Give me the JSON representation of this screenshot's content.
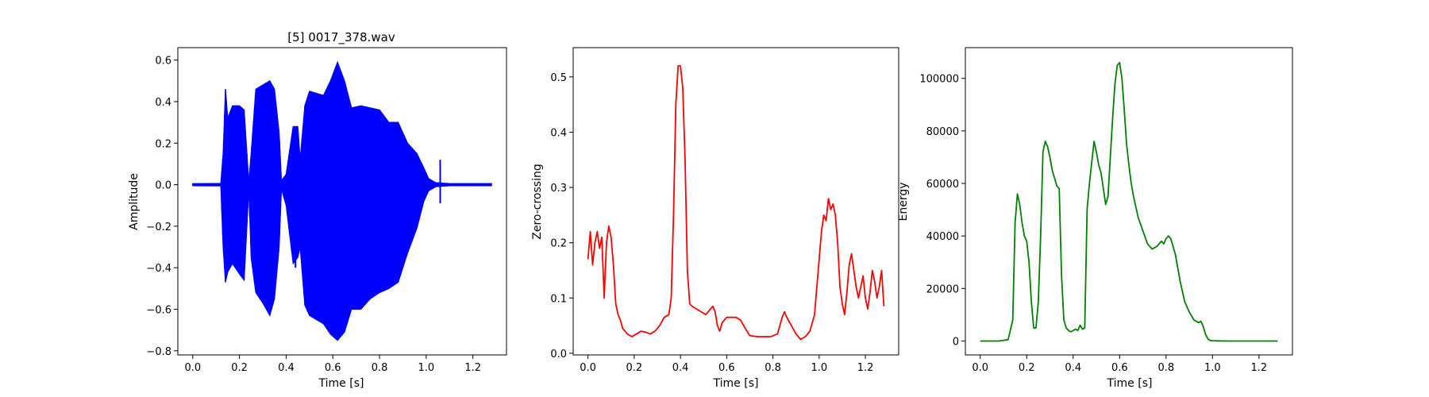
{
  "chart_data": [
    {
      "type": "line",
      "title": "[5] 0017_378.wav",
      "xlabel": "Time [s]",
      "ylabel": "Amplitude",
      "xlim": [
        -0.064,
        1.344
      ],
      "ylim": [
        -0.82,
        0.66
      ],
      "xticks": [
        "0.0",
        "0.2",
        "0.4",
        "0.6",
        "0.8",
        "1.0",
        "1.2"
      ],
      "yticks": [
        "−0.8",
        "−0.6",
        "−0.4",
        "−0.2",
        "0.0",
        "0.2",
        "0.4",
        "0.6"
      ],
      "color": "#0000ff",
      "grid": false,
      "series": [
        {
          "envelope": {
            "t": [
              0.0,
              0.12,
              0.13,
              0.14,
              0.15,
              0.17,
              0.2,
              0.22,
              0.24,
              0.25,
              0.27,
              0.3,
              0.33,
              0.35,
              0.37,
              0.38,
              0.4,
              0.43,
              0.45,
              0.46,
              0.48,
              0.5,
              0.53,
              0.56,
              0.59,
              0.62,
              0.65,
              0.68,
              0.72,
              0.76,
              0.8,
              0.84,
              0.88,
              0.92,
              0.96,
              0.99,
              1.01,
              1.04,
              1.1,
              1.28
            ],
            "upper": [
              0.005,
              0.006,
              0.15,
              0.46,
              0.32,
              0.38,
              0.38,
              0.36,
              0.01,
              0.15,
              0.46,
              0.48,
              0.5,
              0.46,
              0.25,
              0.02,
              0.05,
              0.28,
              0.28,
              0.12,
              0.38,
              0.45,
              0.44,
              0.43,
              0.5,
              0.59,
              0.5,
              0.37,
              0.38,
              0.37,
              0.36,
              0.3,
              0.3,
              0.2,
              0.15,
              0.08,
              0.03,
              0.01,
              0.005,
              0.005
            ],
            "lower": [
              -0.005,
              -0.006,
              -0.3,
              -0.47,
              -0.42,
              -0.38,
              -0.43,
              -0.46,
              -0.02,
              -0.35,
              -0.52,
              -0.57,
              -0.63,
              -0.55,
              -0.3,
              -0.02,
              -0.1,
              -0.38,
              -0.35,
              -0.3,
              -0.58,
              -0.63,
              -0.65,
              -0.67,
              -0.72,
              -0.75,
              -0.71,
              -0.6,
              -0.6,
              -0.55,
              -0.52,
              -0.5,
              -0.47,
              -0.33,
              -0.21,
              -0.08,
              -0.03,
              -0.01,
              -0.005,
              -0.005
            ]
          },
          "spikes": [
            {
              "t": 0.44,
              "top": 0.16,
              "bottom": -0.4
            },
            {
              "t": 1.06,
              "top": 0.12,
              "bottom": -0.09
            }
          ]
        }
      ]
    },
    {
      "type": "line",
      "title": "",
      "xlabel": "Time [s]",
      "ylabel": "Zero-crossing",
      "xlim": [
        -0.064,
        1.344
      ],
      "ylim": [
        -0.003,
        0.553
      ],
      "xticks": [
        "0.0",
        "0.2",
        "0.4",
        "0.6",
        "0.8",
        "1.0",
        "1.2"
      ],
      "yticks": [
        "0.0",
        "0.1",
        "0.2",
        "0.3",
        "0.4",
        "0.5"
      ],
      "color": "#ff0000",
      "grid": false,
      "series": [
        {
          "x": [
            0.0,
            0.01,
            0.02,
            0.03,
            0.04,
            0.05,
            0.06,
            0.07,
            0.08,
            0.09,
            0.1,
            0.11,
            0.12,
            0.13,
            0.14,
            0.15,
            0.17,
            0.19,
            0.21,
            0.23,
            0.25,
            0.27,
            0.29,
            0.31,
            0.33,
            0.35,
            0.36,
            0.37,
            0.38,
            0.39,
            0.4,
            0.41,
            0.42,
            0.43,
            0.44,
            0.45,
            0.47,
            0.49,
            0.51,
            0.53,
            0.54,
            0.55,
            0.56,
            0.57,
            0.58,
            0.6,
            0.62,
            0.64,
            0.66,
            0.68,
            0.7,
            0.73,
            0.76,
            0.79,
            0.82,
            0.84,
            0.85,
            0.86,
            0.88,
            0.9,
            0.92,
            0.94,
            0.96,
            0.98,
            1.0,
            1.01,
            1.02,
            1.03,
            1.04,
            1.05,
            1.06,
            1.07,
            1.08,
            1.09,
            1.1,
            1.11,
            1.12,
            1.13,
            1.14,
            1.15,
            1.16,
            1.17,
            1.18,
            1.19,
            1.2,
            1.21,
            1.22,
            1.23,
            1.24,
            1.25,
            1.26,
            1.27,
            1.28
          ],
          "y": [
            0.17,
            0.22,
            0.16,
            0.2,
            0.22,
            0.19,
            0.21,
            0.1,
            0.2,
            0.23,
            0.21,
            0.16,
            0.09,
            0.07,
            0.06,
            0.045,
            0.035,
            0.03,
            0.035,
            0.04,
            0.038,
            0.035,
            0.04,
            0.05,
            0.065,
            0.07,
            0.1,
            0.25,
            0.45,
            0.52,
            0.52,
            0.48,
            0.35,
            0.15,
            0.09,
            0.085,
            0.08,
            0.075,
            0.07,
            0.08,
            0.085,
            0.075,
            0.05,
            0.04,
            0.055,
            0.065,
            0.065,
            0.065,
            0.06,
            0.045,
            0.032,
            0.03,
            0.03,
            0.03,
            0.035,
            0.065,
            0.075,
            0.065,
            0.05,
            0.035,
            0.025,
            0.03,
            0.04,
            0.07,
            0.17,
            0.22,
            0.25,
            0.24,
            0.28,
            0.26,
            0.27,
            0.25,
            0.2,
            0.12,
            0.09,
            0.07,
            0.11,
            0.16,
            0.18,
            0.15,
            0.12,
            0.1,
            0.12,
            0.14,
            0.1,
            0.08,
            0.11,
            0.15,
            0.13,
            0.1,
            0.12,
            0.15,
            0.085
          ]
        }
      ]
    },
    {
      "type": "line",
      "title": "",
      "xlabel": "Time [s]",
      "ylabel": "Energy",
      "xlim": [
        -0.064,
        1.344
      ],
      "ylim": [
        -5300,
        111700
      ],
      "xticks": [
        "0.0",
        "0.2",
        "0.4",
        "0.6",
        "0.8",
        "1.0",
        "1.2"
      ],
      "yticks": [
        "0",
        "20000",
        "40000",
        "60000",
        "80000",
        "100000"
      ],
      "color": "#008000",
      "grid": false,
      "series": [
        {
          "x": [
            0.0,
            0.08,
            0.12,
            0.14,
            0.15,
            0.16,
            0.17,
            0.18,
            0.19,
            0.2,
            0.21,
            0.22,
            0.23,
            0.24,
            0.25,
            0.26,
            0.27,
            0.28,
            0.29,
            0.3,
            0.31,
            0.32,
            0.33,
            0.34,
            0.35,
            0.36,
            0.37,
            0.38,
            0.39,
            0.4,
            0.41,
            0.42,
            0.43,
            0.44,
            0.45,
            0.46,
            0.47,
            0.48,
            0.49,
            0.5,
            0.51,
            0.52,
            0.53,
            0.54,
            0.55,
            0.56,
            0.57,
            0.58,
            0.59,
            0.6,
            0.61,
            0.62,
            0.63,
            0.64,
            0.65,
            0.66,
            0.68,
            0.7,
            0.72,
            0.74,
            0.76,
            0.78,
            0.79,
            0.8,
            0.81,
            0.82,
            0.83,
            0.84,
            0.85,
            0.86,
            0.88,
            0.9,
            0.92,
            0.94,
            0.95,
            0.96,
            0.97,
            0.98,
            0.99,
            1.0,
            1.02,
            1.06,
            1.1,
            1.28
          ],
          "y": [
            0,
            0,
            500,
            8000,
            45000,
            56000,
            52000,
            45000,
            40000,
            38000,
            30000,
            15000,
            5000,
            5000,
            15000,
            40000,
            72000,
            76000,
            74000,
            70000,
            65000,
            62000,
            59000,
            58000,
            25000,
            8000,
            5000,
            4000,
            3500,
            4000,
            4500,
            4000,
            6000,
            4500,
            5000,
            50000,
            60000,
            68000,
            76000,
            72000,
            67000,
            64000,
            58000,
            52000,
            55000,
            70000,
            85000,
            98000,
            105000,
            106000,
            100000,
            88000,
            75000,
            67000,
            60000,
            55000,
            47000,
            42000,
            37000,
            35000,
            36000,
            38000,
            37000,
            39000,
            40000,
            39000,
            36000,
            33000,
            28000,
            23000,
            15000,
            11000,
            8000,
            7000,
            7500,
            5500,
            2500,
            800,
            200,
            100,
            50,
            0,
            0,
            0
          ]
        }
      ]
    }
  ]
}
